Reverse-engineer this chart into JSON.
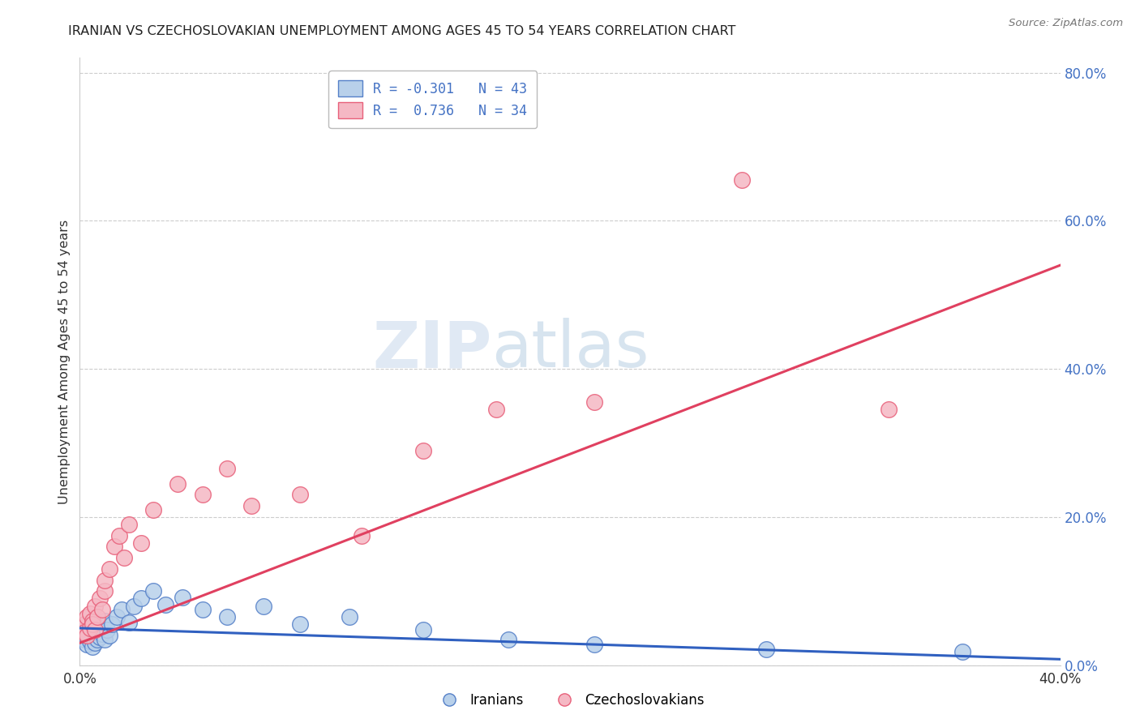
{
  "title": "IRANIAN VS CZECHOSLOVAKIAN UNEMPLOYMENT AMONG AGES 45 TO 54 YEARS CORRELATION CHART",
  "source": "Source: ZipAtlas.com",
  "ylabel": "Unemployment Among Ages 45 to 54 years",
  "xlim": [
    0.0,
    0.4
  ],
  "ylim": [
    0.0,
    0.82
  ],
  "xticks": [
    0.0,
    0.4
  ],
  "xtick_labels": [
    "0.0%",
    "40.0%"
  ],
  "yticks_right": [
    0.0,
    0.2,
    0.4,
    0.6,
    0.8
  ],
  "legend_line1": "R = -0.301   N = 43",
  "legend_line2": "R =  0.736   N = 34",
  "iranian_color": "#b8d0ea",
  "czech_color": "#f5b8c4",
  "iranian_edge_color": "#5580c8",
  "czech_edge_color": "#e8607a",
  "iranian_line_color": "#3060c0",
  "czech_line_color": "#e04060",
  "background_color": "#ffffff",
  "watermark_zip": "ZIP",
  "watermark_atlas": "atlas",
  "watermark_color": "#ccddf0",
  "grid_color": "#cccccc",
  "title_color": "#222222",
  "label_color": "#333333",
  "right_axis_color": "#4472c4",
  "iranian_x": [
    0.001,
    0.002,
    0.002,
    0.003,
    0.003,
    0.003,
    0.004,
    0.004,
    0.005,
    0.005,
    0.005,
    0.005,
    0.006,
    0.006,
    0.007,
    0.007,
    0.007,
    0.008,
    0.008,
    0.009,
    0.01,
    0.01,
    0.011,
    0.012,
    0.013,
    0.015,
    0.017,
    0.02,
    0.022,
    0.025,
    0.03,
    0.035,
    0.042,
    0.05,
    0.06,
    0.075,
    0.09,
    0.11,
    0.14,
    0.175,
    0.21,
    0.28,
    0.36
  ],
  "iranian_y": [
    0.045,
    0.035,
    0.05,
    0.028,
    0.04,
    0.055,
    0.032,
    0.048,
    0.025,
    0.038,
    0.052,
    0.06,
    0.042,
    0.03,
    0.055,
    0.035,
    0.045,
    0.038,
    0.05,
    0.042,
    0.06,
    0.035,
    0.048,
    0.04,
    0.055,
    0.065,
    0.075,
    0.058,
    0.08,
    0.09,
    0.1,
    0.082,
    0.092,
    0.075,
    0.065,
    0.08,
    0.055,
    0.065,
    0.048,
    0.035,
    0.028,
    0.022,
    0.018
  ],
  "czech_x": [
    0.001,
    0.002,
    0.002,
    0.003,
    0.003,
    0.004,
    0.004,
    0.005,
    0.005,
    0.006,
    0.006,
    0.007,
    0.008,
    0.009,
    0.01,
    0.01,
    0.012,
    0.014,
    0.016,
    0.018,
    0.02,
    0.025,
    0.03,
    0.04,
    0.05,
    0.06,
    0.07,
    0.09,
    0.115,
    0.14,
    0.17,
    0.21,
    0.27,
    0.33
  ],
  "czech_y": [
    0.05,
    0.055,
    0.045,
    0.04,
    0.065,
    0.05,
    0.07,
    0.06,
    0.055,
    0.048,
    0.08,
    0.065,
    0.09,
    0.075,
    0.1,
    0.115,
    0.13,
    0.16,
    0.175,
    0.145,
    0.19,
    0.165,
    0.21,
    0.245,
    0.23,
    0.265,
    0.215,
    0.23,
    0.175,
    0.29,
    0.345,
    0.355,
    0.655,
    0.345
  ],
  "iranian_trend_x0": 0.0,
  "iranian_trend_y0": 0.05,
  "iranian_trend_x1": 0.4,
  "iranian_trend_y1": 0.008,
  "czech_trend_x0": 0.0,
  "czech_trend_y0": 0.03,
  "czech_trend_x1": 0.4,
  "czech_trend_y1": 0.54
}
